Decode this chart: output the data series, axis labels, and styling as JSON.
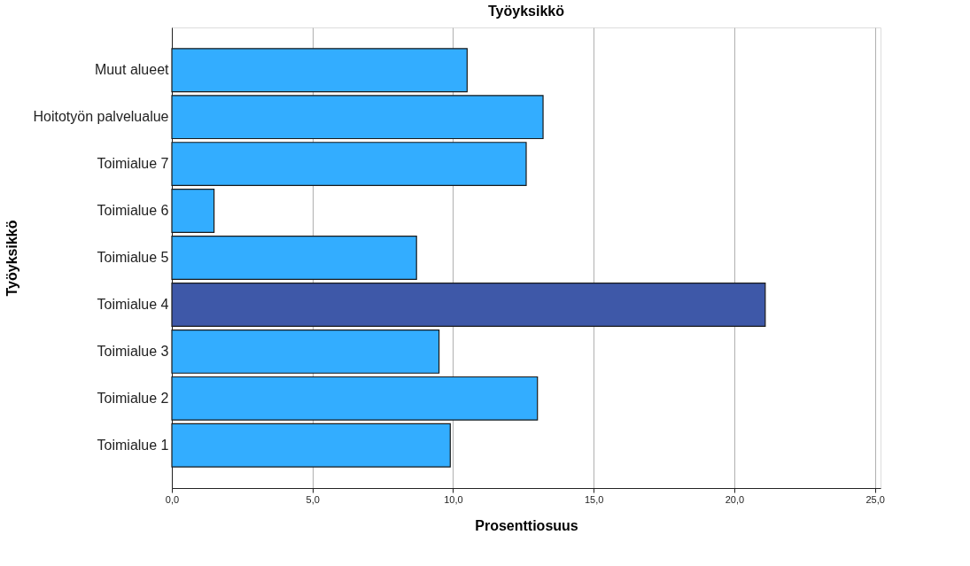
{
  "chart_data": {
    "type": "bar",
    "orientation": "horizontal",
    "title": "Työyksikkö",
    "xlabel": "Prosenttiosuus",
    "ylabel": "Työyksikkö",
    "categories": [
      "Muut alueet",
      "Hoitotyön palvelualue",
      "Toimialue 7",
      "Toimialue 6",
      "Toimialue 5",
      "Toimialue 4",
      "Toimialue 3",
      "Toimialue 2",
      "Toimialue 1"
    ],
    "values": [
      10.5,
      13.2,
      12.6,
      1.5,
      8.7,
      21.1,
      9.5,
      13.0,
      9.9
    ],
    "colors": [
      "#33adff",
      "#33adff",
      "#33adff",
      "#33adff",
      "#33adff",
      "#3e58a8",
      "#33adff",
      "#33adff",
      "#33adff"
    ],
    "xlim": [
      0,
      25.2
    ],
    "xticks": [
      {
        "value": 0,
        "label": "0,0"
      },
      {
        "value": 5,
        "label": "5,0"
      },
      {
        "value": 10,
        "label": "10,0"
      },
      {
        "value": 15,
        "label": "15,0"
      },
      {
        "value": 20,
        "label": "20,0"
      },
      {
        "value": 25,
        "label": "25,0"
      }
    ],
    "grid": "x"
  }
}
